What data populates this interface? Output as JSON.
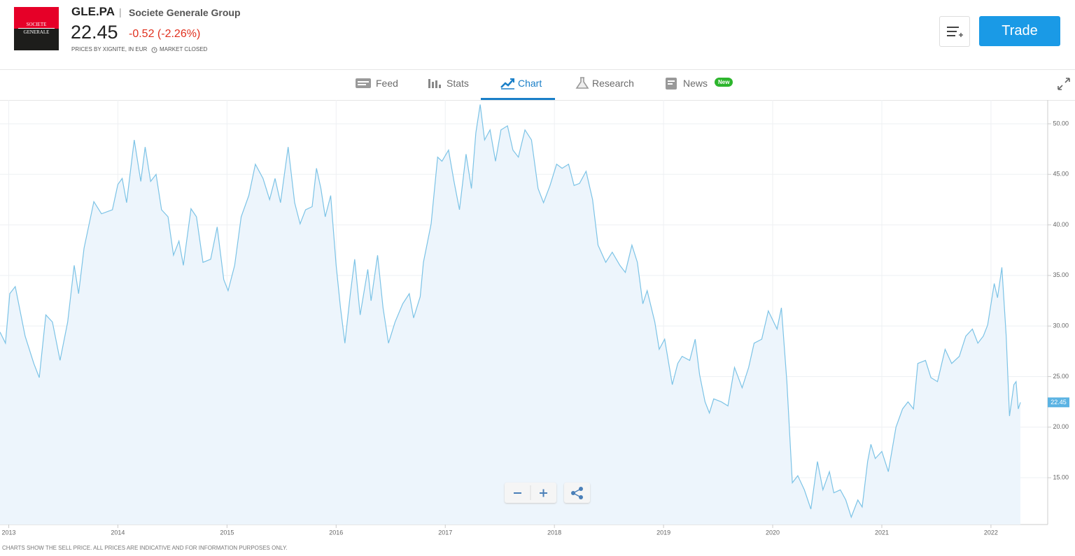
{
  "header": {
    "logo": [
      "SOCIETE",
      "GENERALE"
    ],
    "ticker": "GLE.PA",
    "separator": "|",
    "company": "Societe Generale Group",
    "price": "22.45",
    "change": "-0.52 (-2.26%)",
    "source": "PRICES BY XIGNITE, IN EUR",
    "status": "MARKET CLOSED",
    "trade_button": "Trade"
  },
  "tabs": [
    {
      "label": "Feed"
    },
    {
      "label": "Stats"
    },
    {
      "label": "Chart",
      "active": true
    },
    {
      "label": "Research"
    },
    {
      "label": "News",
      "badge": "New"
    }
  ],
  "chart_data": {
    "type": "line",
    "x": [
      2012.92,
      2012.97,
      2013.01,
      2013.06,
      2013.15,
      2013.23,
      2013.28,
      2013.34,
      2013.4,
      2013.47,
      2013.54,
      2013.6,
      2013.64,
      2013.69,
      2013.78,
      2013.85,
      2013.95,
      2014.0,
      2014.04,
      2014.08,
      2014.15,
      2014.21,
      2014.25,
      2014.3,
      2014.35,
      2014.4,
      2014.46,
      2014.51,
      2014.56,
      2014.6,
      2014.67,
      2014.72,
      2014.78,
      2014.85,
      2014.91,
      2014.97,
      2015.01,
      2015.07,
      2015.13,
      2015.2,
      2015.26,
      2015.33,
      2015.39,
      2015.44,
      2015.49,
      2015.56,
      2015.62,
      2015.67,
      2015.72,
      2015.78,
      2015.82,
      2015.86,
      2015.9,
      2015.95,
      2016.0,
      2016.04,
      2016.08,
      2016.13,
      2016.17,
      2016.22,
      2016.29,
      2016.32,
      2016.38,
      2016.43,
      2016.48,
      2016.54,
      2016.61,
      2016.67,
      2016.71,
      2016.77,
      2016.8,
      2016.87,
      2016.93,
      2016.97,
      2017.03,
      2017.08,
      2017.13,
      2017.19,
      2017.24,
      2017.28,
      2017.32,
      2017.36,
      2017.41,
      2017.46,
      2017.51,
      2017.57,
      2017.62,
      2017.67,
      2017.73,
      2017.79,
      2017.85,
      2017.9,
      2017.96,
      2018.02,
      2018.07,
      2018.13,
      2018.18,
      2018.23,
      2018.29,
      2018.35,
      2018.4,
      2018.47,
      2018.53,
      2018.6,
      2018.65,
      2018.71,
      2018.76,
      2018.81,
      2018.85,
      2018.92,
      2018.96,
      2019.01,
      2019.08,
      2019.13,
      2019.17,
      2019.24,
      2019.29,
      2019.33,
      2019.38,
      2019.42,
      2019.46,
      2019.53,
      2019.59,
      2019.65,
      2019.72,
      2019.78,
      2019.83,
      2019.9,
      2019.96,
      2020.04,
      2020.08,
      2020.13,
      2020.18,
      2020.23,
      2020.29,
      2020.35,
      2020.41,
      2020.46,
      2020.52,
      2020.56,
      2020.62,
      2020.67,
      2020.72,
      2020.78,
      2020.82,
      2020.87,
      2020.9,
      2020.94,
      2021.0,
      2021.06,
      2021.13,
      2021.19,
      2021.24,
      2021.29,
      2021.33,
      2021.4,
      2021.45,
      2021.51,
      2021.58,
      2021.64,
      2021.71,
      2021.77,
      2021.83,
      2021.88,
      2021.93,
      2021.97,
      2022.03,
      2022.06,
      2022.1,
      2022.14,
      2022.17,
      2022.21,
      2022.23,
      2022.25,
      2022.27
    ],
    "series": [
      {
        "color": "#7cc3e6",
        "fill": "#edf5fc",
        "values": [
          29.4,
          28.3,
          33.2,
          33.9,
          29.0,
          26.3,
          24.9,
          31.1,
          30.4,
          26.6,
          30.4,
          36.0,
          33.2,
          37.7,
          42.3,
          41.1,
          41.5,
          44.0,
          44.6,
          42.2,
          48.4,
          44.3,
          47.7,
          44.3,
          45.0,
          41.5,
          40.8,
          37.0,
          38.4,
          36.0,
          41.6,
          40.8,
          36.3,
          36.6,
          39.8,
          34.6,
          33.5,
          36.0,
          40.8,
          42.9,
          46.0,
          44.6,
          42.5,
          44.6,
          42.2,
          47.7,
          42.2,
          40.1,
          41.5,
          41.8,
          45.6,
          43.6,
          40.8,
          42.9,
          36.0,
          31.8,
          28.3,
          33.2,
          36.6,
          31.1,
          35.6,
          32.5,
          37.0,
          31.8,
          28.3,
          30.4,
          32.2,
          33.2,
          30.8,
          32.9,
          36.3,
          40.1,
          46.7,
          46.3,
          47.4,
          44.3,
          41.5,
          47.0,
          43.6,
          49.1,
          51.9,
          48.4,
          49.4,
          46.3,
          49.4,
          49.8,
          47.4,
          46.7,
          49.4,
          48.4,
          43.6,
          42.2,
          43.9,
          46.0,
          45.6,
          46.0,
          43.9,
          44.1,
          45.3,
          42.5,
          38.0,
          36.3,
          37.3,
          36.0,
          35.3,
          38.0,
          36.3,
          32.2,
          33.5,
          30.4,
          27.7,
          28.7,
          24.2,
          26.3,
          27.0,
          26.6,
          28.7,
          25.2,
          22.5,
          21.4,
          22.8,
          22.5,
          22.1,
          25.9,
          23.9,
          25.9,
          28.3,
          28.7,
          31.5,
          29.7,
          31.8,
          24.5,
          14.5,
          15.2,
          13.8,
          11.9,
          16.6,
          13.8,
          15.6,
          13.5,
          13.8,
          12.8,
          11.1,
          12.8,
          12.1,
          16.6,
          18.3,
          16.9,
          17.6,
          15.6,
          20.0,
          21.8,
          22.5,
          21.8,
          26.3,
          26.6,
          24.9,
          24.5,
          27.7,
          26.3,
          27.0,
          29.0,
          29.7,
          28.3,
          29.0,
          30.1,
          34.2,
          32.8,
          35.8,
          29.0,
          21.1,
          24.2,
          24.5,
          21.8,
          22.45
        ]
      }
    ],
    "xlim": [
      2012.92,
      2022.52
    ],
    "ylim": [
      10.37,
      52.35
    ],
    "xticks": [
      2013,
      2014,
      2015,
      2016,
      2017,
      2018,
      2019,
      2020,
      2021,
      2022
    ],
    "yticks": [
      {
        "value": 15,
        "label": "15.00"
      },
      {
        "value": 20,
        "label": "20.00"
      },
      {
        "value": 25,
        "label": "25.00"
      },
      {
        "value": 30,
        "label": "30.00"
      },
      {
        "value": 35,
        "label": "35.00"
      },
      {
        "value": 40,
        "label": "40.00"
      },
      {
        "value": 45,
        "label": "45.00"
      },
      {
        "value": 50,
        "label": "50.00"
      }
    ],
    "grid": true,
    "last_flag_color": "#5bb3e3"
  },
  "disclaimer": "CHARTS SHOW THE SELL PRICE. ALL PRICES ARE INDICATIVE AND FOR INFORMATION PURPOSES ONLY."
}
